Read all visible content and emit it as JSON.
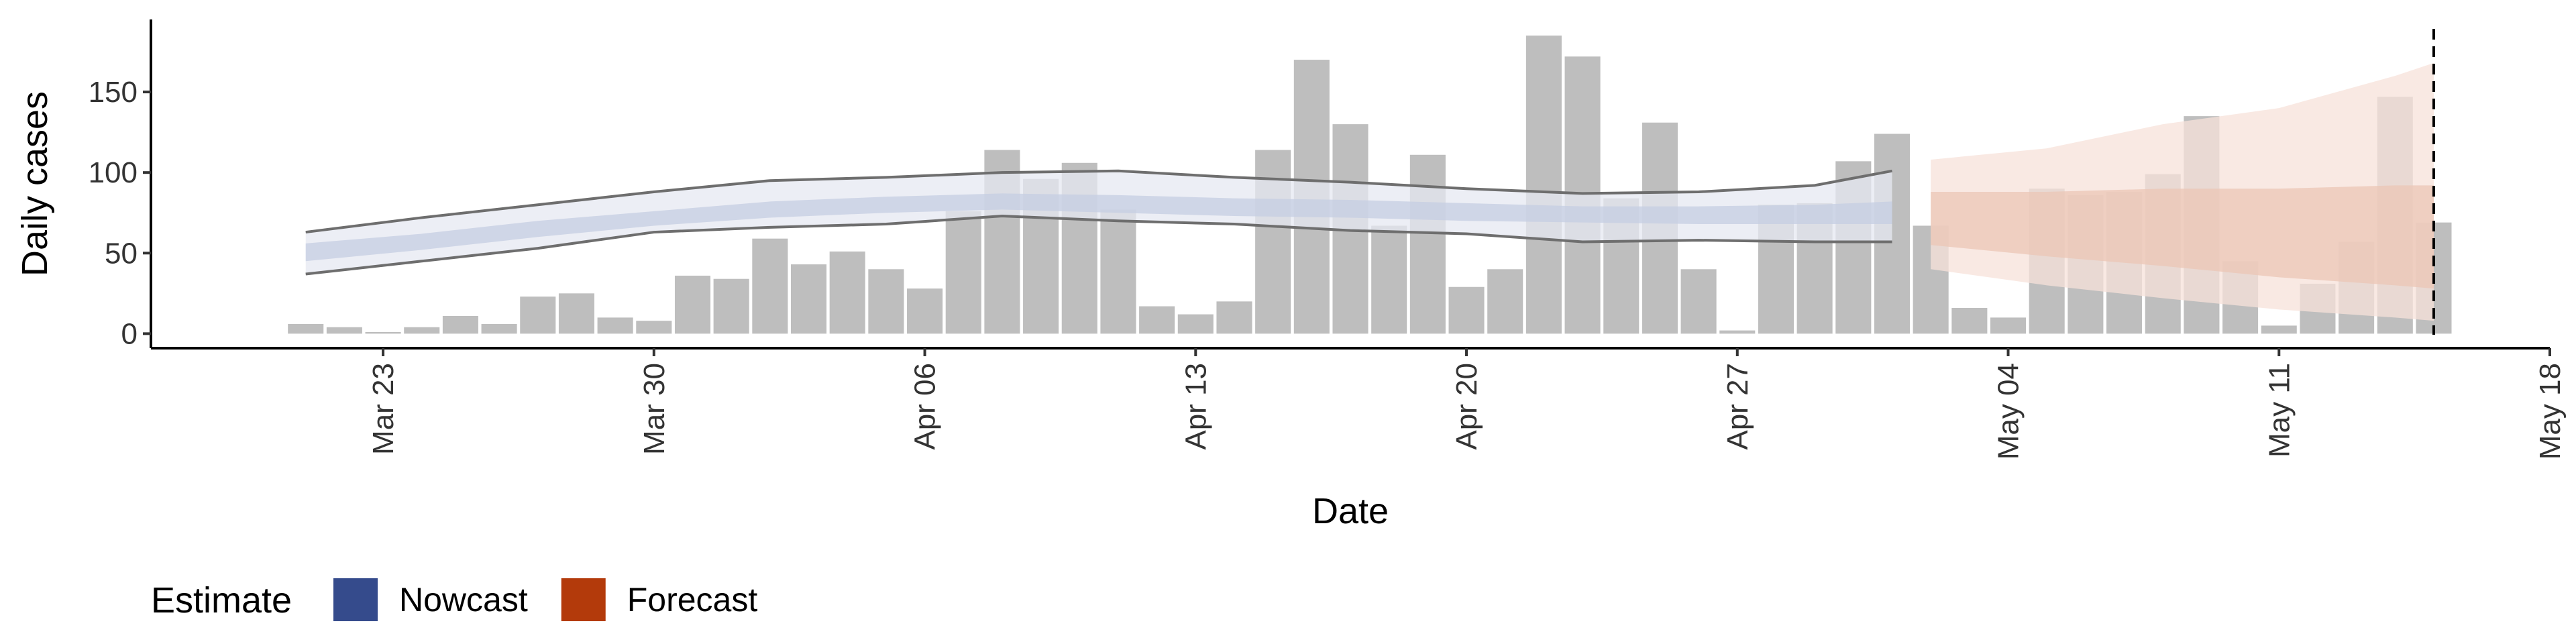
{
  "chart_data": {
    "type": "bar",
    "x_label": "Date",
    "y_label": "Daily cases",
    "categories": [
      "Mar 21",
      "Mar 22",
      "Mar 23",
      "Mar 24",
      "Mar 25",
      "Mar 26",
      "Mar 27",
      "Mar 28",
      "Mar 29",
      "Mar 30",
      "Mar 31",
      "Apr 01",
      "Apr 02",
      "Apr 03",
      "Apr 04",
      "Apr 05",
      "Apr 06",
      "Apr 07",
      "Apr 08",
      "Apr 09",
      "Apr 10",
      "Apr 11",
      "Apr 12",
      "Apr 13",
      "Apr 14",
      "Apr 15",
      "Apr 16",
      "Apr 17",
      "Apr 18",
      "Apr 19",
      "Apr 20",
      "Apr 21",
      "Apr 22",
      "Apr 23",
      "Apr 24",
      "Apr 25",
      "Apr 26",
      "Apr 27",
      "Apr 28",
      "Apr 29",
      "Apr 30",
      "May 01",
      "May 02",
      "May 03",
      "May 04",
      "May 05",
      "May 06",
      "May 07",
      "May 08",
      "May 09",
      "May 10",
      "May 11",
      "May 12",
      "May 13",
      "May 14",
      "May 15"
    ],
    "values": [
      6,
      4,
      1,
      4,
      11,
      6,
      23,
      25,
      10,
      8,
      36,
      34,
      59,
      43,
      51,
      40,
      28,
      76,
      114,
      96,
      106,
      77,
      17,
      12,
      20,
      114,
      170,
      130,
      67,
      111,
      29,
      40,
      185,
      172,
      84,
      131,
      40,
      2,
      80,
      81,
      107,
      124,
      67,
      16,
      10,
      90,
      86,
      88,
      99,
      135,
      45,
      5,
      31,
      57,
      147,
      69
    ],
    "color": "#bebebe",
    "xlim": [
      "Mar 17",
      "May 18"
    ],
    "xticks": [
      "Mar 23",
      "Mar 30",
      "Apr 06",
      "Apr 13",
      "Apr 20",
      "Apr 27",
      "May 04",
      "May 11",
      "May 18"
    ],
    "ylim": [
      -9,
      195
    ],
    "yticks": [
      0,
      50,
      100,
      150
    ],
    "vline": "May 15",
    "legend_title": "Estimate",
    "bands": [
      {
        "name": "Nowcast",
        "color": "#354b8c",
        "outer_fill": "#e6e8f1",
        "inner_fill": "#c6cde1",
        "edge_color": "#6e6e6e",
        "x": [
          "Mar 21",
          "Mar 24",
          "Mar 27",
          "Mar 30",
          "Apr 02",
          "Apr 05",
          "Apr 08",
          "Apr 11",
          "Apr 14",
          "Apr 17",
          "Apr 20",
          "Apr 23",
          "Apr 26",
          "Apr 29",
          "May 01"
        ],
        "outer_upper": [
          63,
          72,
          80,
          88,
          95,
          97,
          100,
          101,
          97,
          94,
          90,
          87,
          88,
          92,
          101
        ],
        "inner_upper": [
          56,
          62,
          70,
          76,
          82,
          85,
          87,
          86,
          84,
          83,
          81,
          79,
          79,
          80,
          82
        ],
        "inner_lower": [
          45,
          52,
          60,
          67,
          72,
          75,
          77,
          75,
          73,
          72,
          70,
          69,
          68,
          68,
          68
        ],
        "outer_lower": [
          37,
          45,
          53,
          63,
          66,
          68,
          73,
          70,
          68,
          64,
          62,
          57,
          58,
          57,
          57
        ]
      },
      {
        "name": "Forecast",
        "color": "#b33a0b",
        "outer_fill": "#f7e2da",
        "inner_fill": "#ebc5b5",
        "x": [
          "May 02",
          "May 05",
          "May 08",
          "May 11",
          "May 14",
          "May 15"
        ],
        "outer_upper": [
          108,
          115,
          130,
          140,
          160,
          168
        ],
        "inner_upper": [
          88,
          88,
          90,
          90,
          92,
          92
        ],
        "inner_lower": [
          55,
          48,
          42,
          35,
          30,
          28
        ],
        "outer_lower": [
          40,
          30,
          22,
          15,
          10,
          8
        ]
      }
    ]
  }
}
